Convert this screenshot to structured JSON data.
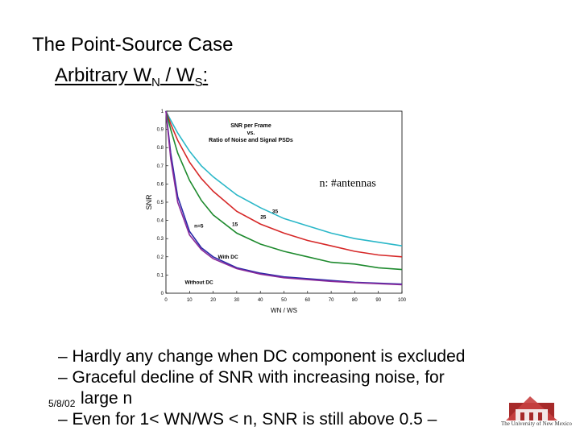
{
  "slide": {
    "title": "The Point-Source Case",
    "subtitle_main": "Arbitrary W",
    "subtitle_sub1": "N",
    "subtitle_mid": " / W",
    "subtitle_sub2": "S",
    "subtitle_end": ":",
    "bullets": [
      "– Hardly any change when DC component is excluded",
      "– Graceful decline of SNR with increasing noise, for",
      "large n",
      "– Even for 1< WN/WS < n, SNR is still above 0.5 –"
    ],
    "date": "5/8/02",
    "logo_text": "The University of New Mexico"
  },
  "chart_data": {
    "type": "line",
    "title": "SNR per Frame vs. Ratio of Noise and Signal PSDs",
    "title_lines": [
      "SNR per Frame",
      "vs.",
      "Ratio of Noise and Signal PSDs"
    ],
    "xlabel": "W_N / W_S",
    "ylabel": "SNR",
    "xlim": [
      0,
      100
    ],
    "ylim": [
      0,
      1
    ],
    "xticks": [
      0,
      10,
      20,
      30,
      40,
      50,
      60,
      70,
      80,
      90,
      100
    ],
    "yticks": [
      0,
      0.1,
      0.2,
      0.3,
      0.4,
      0.5,
      0.6,
      0.7,
      0.8,
      0.9,
      1
    ],
    "x": [
      0,
      2,
      5,
      10,
      15,
      20,
      30,
      40,
      50,
      60,
      70,
      80,
      90,
      100
    ],
    "series": [
      {
        "name": "35",
        "color": "#2ab7c8",
        "values": [
          1.0,
          0.95,
          0.88,
          0.78,
          0.7,
          0.64,
          0.54,
          0.47,
          0.41,
          0.37,
          0.33,
          0.3,
          0.28,
          0.26
        ]
      },
      {
        "name": "25",
        "color": "#d62828",
        "values": [
          1.0,
          0.93,
          0.84,
          0.72,
          0.63,
          0.56,
          0.45,
          0.38,
          0.33,
          0.29,
          0.26,
          0.23,
          0.21,
          0.2
        ]
      },
      {
        "name": "15",
        "color": "#1e8a2e",
        "values": [
          1.0,
          0.9,
          0.77,
          0.62,
          0.51,
          0.43,
          0.33,
          0.27,
          0.23,
          0.2,
          0.17,
          0.16,
          0.14,
          0.13
        ]
      },
      {
        "name": "n=5 With DC",
        "color": "#2a2aa8",
        "values": [
          1.0,
          0.77,
          0.53,
          0.34,
          0.25,
          0.2,
          0.14,
          0.11,
          0.09,
          0.08,
          0.07,
          0.06,
          0.055,
          0.05
        ]
      },
      {
        "name": "n=5 Without DC",
        "color": "#8a2a9a",
        "values": [
          1.0,
          0.74,
          0.5,
          0.32,
          0.24,
          0.19,
          0.135,
          0.105,
          0.085,
          0.075,
          0.065,
          0.058,
          0.052,
          0.047
        ]
      }
    ],
    "annotations": [
      "n: #antennas",
      "35",
      "25",
      "15",
      "n=5",
      "With DC",
      "Without DC"
    ]
  }
}
